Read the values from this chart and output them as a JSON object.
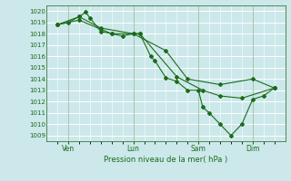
{
  "bg_color": "#cce8ea",
  "grid_color": "#ffffff",
  "line_color": "#1a6b1a",
  "marker_color": "#1a6b1a",
  "ylabel_ticks": [
    1009,
    1010,
    1011,
    1012,
    1013,
    1014,
    1015,
    1016,
    1017,
    1018,
    1019,
    1020
  ],
  "ylim": [
    1008.5,
    1020.5
  ],
  "xlabel": "Pression niveau de la mer( hPa )",
  "xtick_labels": [
    "Ven",
    "Lun",
    "Sam",
    "Dim"
  ],
  "xtick_positions": [
    1,
    4,
    7,
    9.5
  ],
  "xlim": [
    0,
    11
  ],
  "series1": [
    [
      0.5,
      1018.8
    ],
    [
      1.0,
      1019.0
    ],
    [
      1.5,
      1019.5
    ],
    [
      1.8,
      1019.9
    ],
    [
      2.0,
      1019.4
    ],
    [
      2.5,
      1018.2
    ],
    [
      3.0,
      1018.0
    ],
    [
      3.5,
      1017.8
    ],
    [
      4.0,
      1018.0
    ],
    [
      4.3,
      1018.0
    ],
    [
      4.8,
      1016.0
    ],
    [
      5.0,
      1015.6
    ],
    [
      5.5,
      1014.1
    ],
    [
      6.0,
      1013.8
    ],
    [
      6.5,
      1013.0
    ],
    [
      7.0,
      1013.0
    ],
    [
      7.2,
      1011.5
    ],
    [
      7.5,
      1011.0
    ],
    [
      8.0,
      1010.0
    ],
    [
      8.5,
      1009.0
    ],
    [
      9.0,
      1010.0
    ],
    [
      9.5,
      1012.2
    ],
    [
      10.0,
      1012.5
    ],
    [
      10.5,
      1013.2
    ]
  ],
  "series2": [
    [
      0.5,
      1018.8
    ],
    [
      1.5,
      1019.5
    ],
    [
      2.5,
      1018.5
    ],
    [
      4.0,
      1018.0
    ],
    [
      5.5,
      1016.5
    ],
    [
      6.5,
      1014.0
    ],
    [
      8.0,
      1013.5
    ],
    [
      9.5,
      1014.0
    ],
    [
      10.5,
      1013.2
    ]
  ],
  "series3": [
    [
      0.5,
      1018.8
    ],
    [
      1.5,
      1019.2
    ],
    [
      3.0,
      1018.0
    ],
    [
      4.3,
      1018.0
    ],
    [
      6.0,
      1014.2
    ],
    [
      7.2,
      1013.0
    ],
    [
      8.0,
      1012.5
    ],
    [
      9.0,
      1012.3
    ],
    [
      10.5,
      1013.2
    ]
  ]
}
